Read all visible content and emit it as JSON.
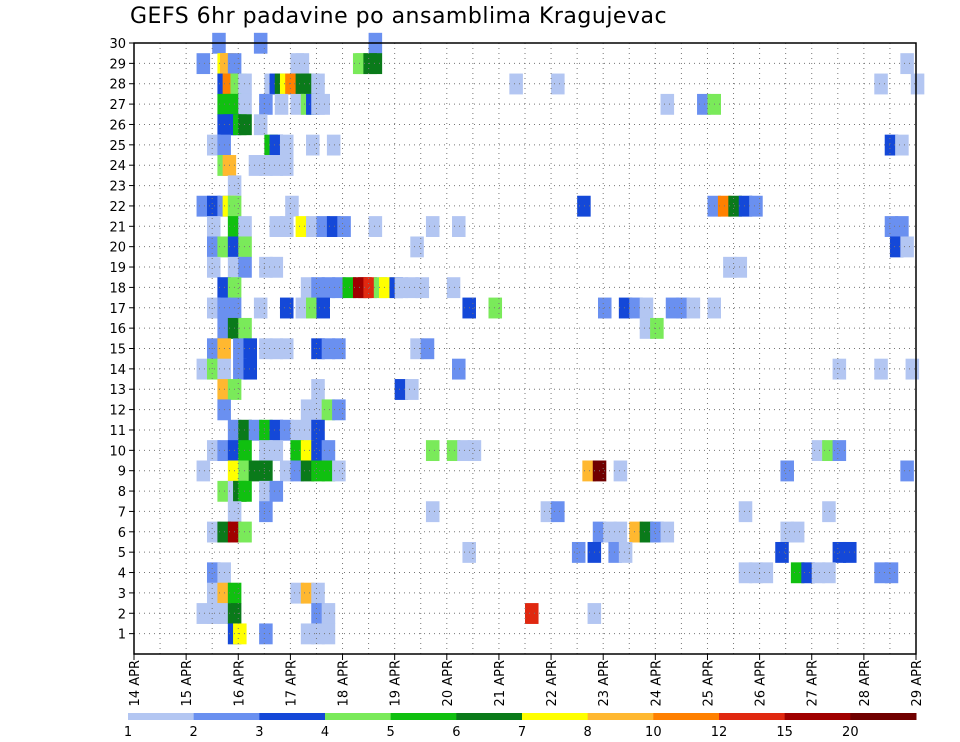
{
  "chart_data": {
    "type": "heatmap",
    "title": "GEFS 6hr padavine po ansamblima Kragujevac",
    "xlabel": "",
    "ylabel": "",
    "x_tick_labels": [
      "14 APR",
      "15 APR",
      "16 APR",
      "17 APR",
      "18 APR",
      "19 APR",
      "20 APR",
      "21 APR",
      "22 APR",
      "23 APR",
      "24 APR",
      "25 APR",
      "26 APR",
      "27 APR",
      "28 APR",
      "29 APR"
    ],
    "x_unit": "days since 14 APR, 6-hourly steps",
    "xlim": [
      0,
      15
    ],
    "y_tick_labels": [
      "1",
      "2",
      "3",
      "4",
      "5",
      "6",
      "7",
      "8",
      "9",
      "10",
      "11",
      "12",
      "13",
      "14",
      "15",
      "16",
      "17",
      "18",
      "19",
      "20",
      "21",
      "22",
      "23",
      "24",
      "25",
      "26",
      "27",
      "28",
      "29",
      "30"
    ],
    "ylim": [
      0,
      30
    ],
    "grid": true,
    "colorbar": {
      "labels": [
        "1",
        "2",
        "3",
        "4",
        "5",
        "6",
        "7",
        "8",
        "10",
        "12",
        "15",
        "20"
      ],
      "colors": [
        "#b3c6f2",
        "#6a90f0",
        "#1448d8",
        "#7aea5a",
        "#10c010",
        "#0a7a1a",
        "#ffff00",
        "#ffb830",
        "#ff8000",
        "#e02810",
        "#a00000",
        "#700000"
      ],
      "cell_color_codes": [
        "a",
        "b",
        "c",
        "d",
        "e",
        "f",
        "g",
        "h",
        "i",
        "j",
        "k",
        "l"
      ]
    },
    "cells": [
      [
        "30",
        "1.5:b,2.3:b,4.5:b"
      ],
      [
        "29",
        "1.2:b,1.6:g,1.65:h,1.7:h,1.8:b,3.0:a,3.1:a,4.2:d,4.25:d,4.4:f,4.5:f,14.7:a"
      ],
      [
        "28",
        "1.6:c,1.7:i,1.75:i,1.85:d,1.9:d,2.0:a,2.5:a,2.6:c,2.7:f,2.8:g,2.9:i,3.0:i,3.1:f,3.2:f,3.3:f,3.4:a,7.2:a,8.0:a,14.2:a,14.9:a"
      ],
      [
        "27",
        "1.6:e,1.7:e,1.8:e,2.0:a,2.4:b,2.7:a,3.0:a,3.2:d,3.3:c,3.4:a,3.5:a,10.1:a,10.8:b,11.0:d"
      ],
      [
        "26",
        "1.6:c,1.7:c,1.8:c,1.9:e,2.0:f,2.3:a"
      ],
      [
        "25",
        "1.4:a,1.6:b,2.5:e,2.6:c,2.8:a,3.3:a,3.7:a,14.4:c,14.6:a"
      ],
      [
        "24",
        "1.6:d,1.7:h,2.2:a,2.4:a,2.6:a,2.8:a"
      ],
      [
        "23",
        "1.8:a"
      ],
      [
        "22",
        "1.2:b,1.4:c,1.6:b,1.7:g,1.8:d,2.9:a,8.5:c,11.0:b,11.2:i,11.4:f,11.6:c,11.8:b"
      ],
      [
        "21",
        "1.4:a,1.8:e,2.0:a,2.6:a,2.8:a,3.1:g,3.3:a,3.5:b,3.7:c,3.9:b,4.5:a,5.6:a,6.1:a,14.4:b,14.6:b"
      ],
      [
        "20",
        "1.4:b,1.6:d,1.8:c,2.0:d,5.3:a,14.5:c,14.7:a"
      ],
      [
        "19",
        "1.4:a,1.8:a,2.0:b,2.4:a,2.6:a,11.3:a,11.5:a"
      ],
      [
        "18",
        "1.6:c,1.8:d,3.2:a,3.4:b,3.6:b,3.8:b,4.0:e,4.2:k,4.3:k,4.4:j,4.6:d,4.7:g,4.9:c,5.0:a,5.2:a,5.4:a,6.0:a"
      ],
      [
        "17",
        "1.4:a,1.6:b,1.8:b,2.3:a,2.8:c,3.1:a,3.3:d,3.5:c,6.3:c,6.8:d,8.9:b,9.3:c,9.5:b,9.7:a,10.2:b,10.4:b,10.6:a,11.0:a"
      ],
      [
        "16",
        "1.6:b,1.8:f,2.0:d,9.7:a,9.9:d"
      ],
      [
        "15",
        "1.4:b,1.6:h,1.9:b,2.1:c,2.4:a,2.6:a,2.8:a,3.4:c,3.6:b,3.8:b,5.3:a,5.5:b"
      ],
      [
        "14",
        "1.2:a,1.4:d,1.6:a,1.9:b,2.1:c,6.1:b,13.4:a,14.2:a,14.8:a"
      ],
      [
        "13",
        "1.6:h,1.8:d,3.4:a,5.0:c,5.2:a"
      ],
      [
        "12",
        "1.6:b,3.2:a,3.4:a,3.6:d,3.8:b"
      ],
      [
        "11",
        "1.8:b,2.0:f,2.2:b,2.4:e,2.6:c,2.8:b,3.0:a,3.2:a,3.4:c"
      ],
      [
        "10",
        "1.4:a,1.6:b,1.8:c,2.0:e,2.4:a,2.6:a,3.0:e,3.2:g,3.4:c,3.6:b,5.6:d,6.0:d,6.2:a,6.4:a,13.0:a,13.2:d,13.4:b"
      ],
      [
        "9",
        "1.2:a,1.8:g,2.0:d,2.2:f,2.4:f,2.8:a,3.0:b,3.2:f,3.4:e,3.6:e,3.8:a,8.6:h,8.8:l,9.2:a,12.4:b,14.7:b"
      ],
      [
        "8",
        "1.6:d,1.8:a,1.9:f,2.0:e,2.4:a,2.6:b"
      ],
      [
        "7",
        "1.8:a,2.4:b,5.6:a,7.8:a,8.0:b,11.6:a,13.2:a"
      ],
      [
        "6",
        "1.4:a,1.6:f,1.8:k,2.0:d,8.8:b,9.0:a,9.2:a,9.5:h,9.7:f,9.9:b,10.1:a,12.4:a,12.6:a"
      ],
      [
        "5",
        "6.3:a,8.4:b,8.7:c,9.1:b,9.3:a,12.3:c,13.4:c,13.6:c"
      ],
      [
        "4",
        "1.4:b,1.6:a,11.6:a,11.8:a,12.0:a,12.6:e,12.8:c,13.0:a,13.2:a,14.2:b,14.4:b"
      ],
      [
        "3",
        "1.4:a,1.6:h,1.8:e,3.0:a,3.2:h,3.4:a"
      ],
      [
        "2",
        "1.2:a,1.4:a,1.6:a,1.8:f,3.4:b,3.6:a,8.7:a,7.5:j"
      ],
      [
        "1",
        "1.8:c,1.9:g,2.4:b,3.2:a,3.4:a,3.6:a"
      ]
    ]
  }
}
